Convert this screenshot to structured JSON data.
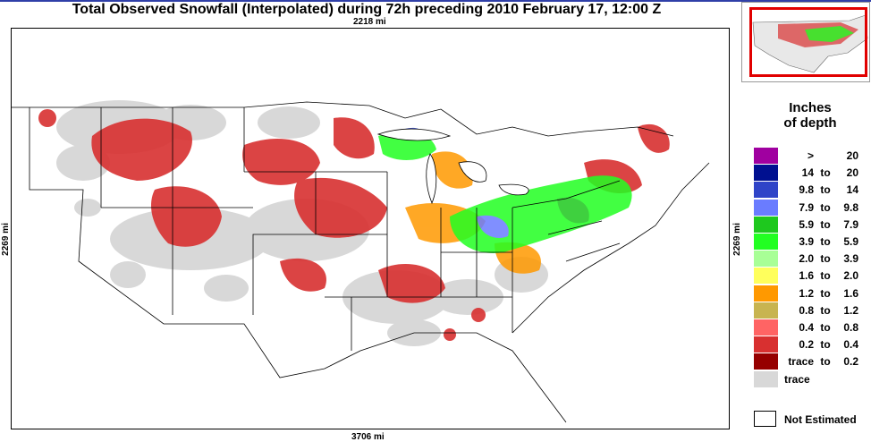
{
  "title": "Total Observed Snowfall (Interpolated) during 72h preceding 2010 February 17, 12:00 Z",
  "dimensions": {
    "top": "2218 mi",
    "bottom": "3706 mi",
    "left": "2269 mi",
    "right": "2269 mi"
  },
  "legend": {
    "title_line1": "Inches",
    "title_line2": "of depth",
    "classes": [
      {
        "lo": ">",
        "to": "",
        "hi": "20",
        "color": "#a000a0"
      },
      {
        "lo": "14",
        "to": "to",
        "hi": "20",
        "color": "#001090"
      },
      {
        "lo": "9.8",
        "to": "to",
        "hi": "14",
        "color": "#2f44c8"
      },
      {
        "lo": "7.9",
        "to": "to",
        "hi": "9.8",
        "color": "#6a7cff"
      },
      {
        "lo": "5.9",
        "to": "to",
        "hi": "7.9",
        "color": "#1ec81e"
      },
      {
        "lo": "3.9",
        "to": "to",
        "hi": "5.9",
        "color": "#22ff22"
      },
      {
        "lo": "2.0",
        "to": "to",
        "hi": "3.9",
        "color": "#a8ff96"
      },
      {
        "lo": "1.6",
        "to": "to",
        "hi": "2.0",
        "color": "#ffff5c"
      },
      {
        "lo": "1.2",
        "to": "to",
        "hi": "1.6",
        "color": "#ff9900"
      },
      {
        "lo": "0.8",
        "to": "to",
        "hi": "1.2",
        "color": "#c8b450"
      },
      {
        "lo": "0.4",
        "to": "to",
        "hi": "0.8",
        "color": "#ff6464"
      },
      {
        "lo": "0.2",
        "to": "to",
        "hi": "0.4",
        "color": "#d83030"
      },
      {
        "lo": "trace",
        "to": "to",
        "hi": "0.2",
        "color": "#960000"
      },
      {
        "lo": "trace",
        "to": "",
        "hi": "",
        "color": "#d8d8d8"
      }
    ],
    "not_estimated": "Not Estimated"
  }
}
